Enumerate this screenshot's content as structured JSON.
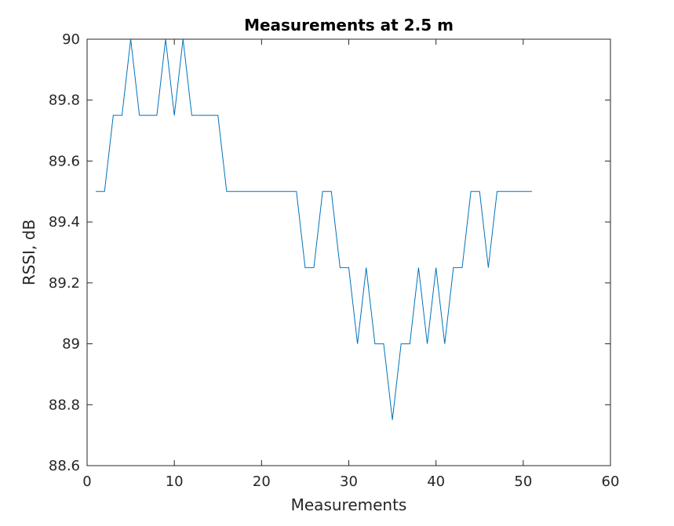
{
  "chart_data": {
    "type": "line",
    "title": "Measurements at 2.5 m",
    "xlabel": "Measurements",
    "ylabel": "RSSI, dB",
    "xlim": [
      0,
      60
    ],
    "ylim": [
      88.6,
      90
    ],
    "xticks": [
      0,
      10,
      20,
      30,
      40,
      50,
      60
    ],
    "yticks": [
      88.6,
      88.8,
      89,
      89.2,
      89.4,
      89.6,
      89.8,
      90
    ],
    "xtick_labels": [
      "0",
      "10",
      "20",
      "30",
      "40",
      "50",
      "60"
    ],
    "ytick_labels": [
      "88.6",
      "88.8",
      "89",
      "89.2",
      "89.4",
      "89.6",
      "89.8",
      "90"
    ],
    "grid": false,
    "box": true,
    "line_color": "#0072BD",
    "series": [
      {
        "x": [
          1,
          2,
          3,
          4,
          5,
          6,
          7,
          8,
          9,
          10,
          11,
          12,
          13,
          14,
          15,
          16,
          17,
          18,
          19,
          20,
          21,
          22,
          23,
          24,
          25,
          26,
          27,
          28,
          29,
          30,
          31,
          32,
          33,
          34,
          35,
          36,
          37,
          38,
          39,
          40,
          41,
          42,
          43,
          44,
          45,
          46,
          47,
          48,
          49,
          50,
          51
        ],
        "values": [
          89.5,
          89.5,
          89.75,
          89.75,
          90,
          89.75,
          89.75,
          89.75,
          90,
          89.75,
          90,
          89.75,
          89.75,
          89.75,
          89.75,
          89.5,
          89.5,
          89.5,
          89.5,
          89.5,
          89.5,
          89.5,
          89.5,
          89.5,
          89.25,
          89.25,
          89.5,
          89.5,
          89.25,
          89.25,
          89,
          89.25,
          89,
          89,
          88.75,
          89,
          89,
          89.25,
          89,
          89.25,
          89,
          89.25,
          89.25,
          89.5,
          89.5,
          89.25,
          89.5,
          89.5,
          89.5,
          89.5,
          89.5
        ]
      }
    ]
  }
}
